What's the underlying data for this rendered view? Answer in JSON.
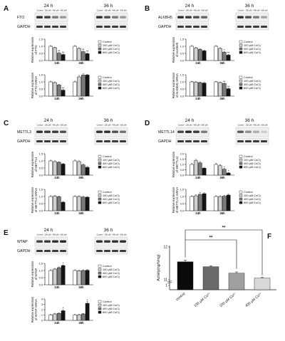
{
  "panel_labels": [
    "A",
    "B",
    "C",
    "D",
    "E",
    "F"
  ],
  "conditions": [
    "Control",
    "100 μM",
    "400 μM",
    "600 μM"
  ],
  "time_points": [
    "24 h",
    "36 h"
  ],
  "protein_band_labels": [
    "FTO",
    "ALKBH5",
    "METTL3",
    "METTL14",
    "WTAP"
  ],
  "loading_control": "GAPDH",
  "legend_entries": [
    "Control",
    "100 μM CoCl₂",
    "400 μM CoCl₂",
    "600 μM CoCl₂"
  ],
  "bar_colors": [
    "#ffffff",
    "#d0d0d0",
    "#7a7a7a",
    "#141414"
  ],
  "group_labels": [
    "24h",
    "36h"
  ],
  "chart_data": [
    {
      "id": "A-protein",
      "type": "bar",
      "panel": "A",
      "ylabel": "Relative expression of FTO",
      "ylim": [
        0,
        1.5
      ],
      "yticks": [
        "0.0",
        "0.5",
        "1.0",
        "1.5"
      ],
      "categories": [
        "24h",
        "36h"
      ],
      "series": [
        {
          "name": "Control",
          "values": [
            1.0,
            1.0
          ]
        },
        {
          "name": "100 μM CoCl₂",
          "values": [
            0.9,
            0.85
          ]
        },
        {
          "name": "400 μM CoCl₂",
          "values": [
            0.52,
            0.62
          ]
        },
        {
          "name": "600 μM CoCl₂",
          "values": [
            0.42,
            0.48
          ]
        }
      ],
      "errors": [
        [
          0.05,
          0.05
        ],
        [
          0.04,
          0.05
        ],
        [
          0.04,
          0.05
        ],
        [
          0.04,
          0.05
        ]
      ],
      "marks": [
        [
          "",
          "",
          "**",
          "**"
        ],
        [
          "",
          "",
          "**",
          "**"
        ]
      ]
    },
    {
      "id": "A-mrna",
      "type": "bar",
      "panel": "A",
      "ylabel": "Relative expression of FTO mRNA",
      "ylim": [
        0,
        1.5
      ],
      "yticks": [
        "0.0",
        "0.5",
        "1.0",
        "1.5"
      ],
      "categories": [
        "24h",
        "36h"
      ],
      "series": [
        {
          "name": "Control",
          "values": [
            1.0,
            1.0
          ]
        },
        {
          "name": "100 μM CoCl₂",
          "values": [
            0.95,
            1.35
          ]
        },
        {
          "name": "400 μM CoCl₂",
          "values": [
            0.78,
            1.48
          ]
        },
        {
          "name": "600 μM CoCl₂",
          "values": [
            0.42,
            1.48
          ]
        }
      ],
      "errors": [
        [
          0.05,
          0.05
        ],
        [
          0.05,
          0.1
        ],
        [
          0.06,
          0.08
        ],
        [
          0.05,
          0.06
        ]
      ],
      "marks": [
        [
          "",
          "",
          "",
          "**"
        ],
        [
          "",
          "",
          "",
          ""
        ]
      ]
    },
    {
      "id": "B-protein",
      "type": "bar",
      "panel": "B",
      "ylabel": "Relative expression of ALKBH5",
      "ylim": [
        0,
        1.5
      ],
      "yticks": [
        "0.0",
        "0.5",
        "1.0",
        "1.5"
      ],
      "categories": [
        "24h",
        "36h"
      ],
      "series": [
        {
          "name": "Control",
          "values": [
            1.0,
            1.0
          ]
        },
        {
          "name": "100 μM CoCl₂",
          "values": [
            0.88,
            0.85
          ]
        },
        {
          "name": "400 μM CoCl₂",
          "values": [
            0.78,
            0.58
          ]
        },
        {
          "name": "600 μM CoCl₂",
          "values": [
            0.68,
            0.38
          ]
        }
      ],
      "errors": [
        [
          0.05,
          0.05
        ],
        [
          0.05,
          0.05
        ],
        [
          0.05,
          0.05
        ],
        [
          0.05,
          0.05
        ]
      ],
      "marks": [
        [
          "",
          "",
          "",
          ""
        ],
        [
          "",
          "",
          "*",
          "**"
        ]
      ]
    },
    {
      "id": "B-mrna",
      "type": "bar",
      "panel": "B",
      "ylabel": "Relative expression of ALKBH5 mRNA",
      "ylim": [
        0,
        1.5
      ],
      "yticks": [
        "0.0",
        "0.5",
        "1.0",
        "1.5"
      ],
      "categories": [
        "24h",
        "36h"
      ],
      "series": [
        {
          "name": "Control",
          "values": [
            1.0,
            1.0
          ]
        },
        {
          "name": "100 μM CoCl₂",
          "values": [
            0.98,
            0.95
          ]
        },
        {
          "name": "400 μM CoCl₂",
          "values": [
            0.95,
            0.88
          ]
        },
        {
          "name": "600 μM CoCl₂",
          "values": [
            0.92,
            0.52
          ]
        }
      ],
      "errors": [
        [
          0.04,
          0.04
        ],
        [
          0.04,
          0.04
        ],
        [
          0.04,
          0.04
        ],
        [
          0.04,
          0.05
        ]
      ],
      "marks": [
        [
          "",
          "",
          "",
          ""
        ],
        [
          "",
          "",
          "**",
          "**"
        ]
      ]
    },
    {
      "id": "C-protein",
      "type": "bar",
      "panel": "C",
      "ylabel": "Relative expression of METTL3",
      "ylim": [
        0,
        1.5
      ],
      "yticks": [
        "0.0",
        "0.5",
        "1.0",
        "1.5"
      ],
      "categories": [
        "24h",
        "36h"
      ],
      "series": [
        {
          "name": "Control",
          "values": [
            1.0,
            1.0
          ]
        },
        {
          "name": "100 μM CoCl₂",
          "values": [
            0.95,
            0.95
          ]
        },
        {
          "name": "400 μM CoCl₂",
          "values": [
            0.9,
            0.72
          ]
        },
        {
          "name": "600 μM CoCl₂",
          "values": [
            0.78,
            0.55
          ]
        }
      ],
      "errors": [
        [
          0.05,
          0.06
        ],
        [
          0.06,
          0.06
        ],
        [
          0.05,
          0.06
        ],
        [
          0.05,
          0.06
        ]
      ],
      "marks": [
        [
          "",
          "",
          "",
          ""
        ],
        [
          "",
          "",
          "",
          ""
        ]
      ]
    },
    {
      "id": "C-mrna",
      "type": "bar",
      "panel": "C",
      "ylabel": "Relative expression of METTL3 mRNA",
      "ylim": [
        0,
        1.5
      ],
      "yticks": [
        "0.0",
        "0.5",
        "1.0",
        "1.5"
      ],
      "categories": [
        "24h",
        "36h"
      ],
      "series": [
        {
          "name": "Control",
          "values": [
            1.0,
            1.0
          ]
        },
        {
          "name": "100 μM CoCl₂",
          "values": [
            1.02,
            1.0
          ]
        },
        {
          "name": "400 μM CoCl₂",
          "values": [
            0.98,
            0.96
          ]
        },
        {
          "name": "600 μM CoCl₂",
          "values": [
            0.6,
            0.95
          ]
        }
      ],
      "errors": [
        [
          0.05,
          0.05
        ],
        [
          0.05,
          0.05
        ],
        [
          0.05,
          0.05
        ],
        [
          0.05,
          0.05
        ]
      ],
      "marks": [
        [
          "",
          "",
          "",
          ""
        ],
        [
          "",
          "",
          "",
          ""
        ]
      ]
    },
    {
      "id": "D-protein",
      "type": "bar",
      "panel": "D",
      "ylabel": "Relative expression of METTL14",
      "ylim": [
        0,
        2.0
      ],
      "yticks": [
        "0.0",
        "0.5",
        "1.0",
        "1.5",
        "2.0"
      ],
      "categories": [
        "24h",
        "36h"
      ],
      "series": [
        {
          "name": "Control",
          "values": [
            1.0,
            1.0
          ]
        },
        {
          "name": "100 μM CoCl₂",
          "values": [
            1.35,
            0.88
          ]
        },
        {
          "name": "400 μM CoCl₂",
          "values": [
            1.15,
            0.55
          ]
        },
        {
          "name": "600 μM CoCl₂",
          "values": [
            0.65,
            0.2
          ]
        }
      ],
      "errors": [
        [
          0.1,
          0.1
        ],
        [
          0.12,
          0.1
        ],
        [
          0.12,
          0.08
        ],
        [
          0.08,
          0.05
        ]
      ],
      "marks": [
        [
          "",
          "",
          "",
          ""
        ],
        [
          "",
          "",
          "*",
          "*"
        ]
      ]
    },
    {
      "id": "D-mrna",
      "type": "bar",
      "panel": "D",
      "ylabel": "Relative expression of METTL14 mRNA",
      "ylim": [
        0,
        1.5
      ],
      "yticks": [
        "0.0",
        "0.5",
        "1.0",
        "1.5"
      ],
      "categories": [
        "24h",
        "36h"
      ],
      "series": [
        {
          "name": "Control",
          "values": [
            1.0,
            1.0
          ]
        },
        {
          "name": "100 μM CoCl₂",
          "values": [
            1.05,
            1.0
          ]
        },
        {
          "name": "400 μM CoCl₂",
          "values": [
            1.15,
            1.02
          ]
        },
        {
          "name": "600 μM CoCl₂",
          "values": [
            1.2,
            1.1
          ]
        }
      ],
      "errors": [
        [
          0.05,
          0.05
        ],
        [
          0.06,
          0.05
        ],
        [
          0.12,
          0.05
        ],
        [
          0.06,
          0.06
        ]
      ],
      "marks": [
        [
          "",
          "",
          "",
          ""
        ],
        [
          "",
          "",
          "",
          ""
        ]
      ]
    },
    {
      "id": "E-protein",
      "type": "bar",
      "panel": "E",
      "ylabel": "Relative expression of WTAP",
      "ylim": [
        0,
        1.5
      ],
      "yticks": [
        "0.0",
        "0.5",
        "1.0",
        "1.5"
      ],
      "categories": [
        "24h",
        "36h"
      ],
      "series": [
        {
          "name": "Control",
          "values": [
            1.0,
            1.0
          ]
        },
        {
          "name": "100 μM CoCl₂",
          "values": [
            1.1,
            0.98
          ]
        },
        {
          "name": "400 μM CoCl₂",
          "values": [
            1.2,
            1.0
          ]
        },
        {
          "name": "600 μM CoCl₂",
          "values": [
            1.35,
            1.02
          ]
        }
      ],
      "errors": [
        [
          0.05,
          0.05
        ],
        [
          0.05,
          0.05
        ],
        [
          0.05,
          0.05
        ],
        [
          0.05,
          0.05
        ]
      ],
      "marks": [
        [
          "",
          "",
          "",
          "*"
        ],
        [
          "",
          "",
          "",
          ""
        ]
      ]
    },
    {
      "id": "E-mrna",
      "type": "bar",
      "panel": "E",
      "ylabel": "Relative expression of WTAP mRNA",
      "ylim": [
        0,
        4
      ],
      "yticks": [
        "0",
        "1",
        "2",
        "3",
        "4"
      ],
      "categories": [
        "24h",
        "36h"
      ],
      "series": [
        {
          "name": "Control",
          "values": [
            1.0,
            1.0
          ]
        },
        {
          "name": "100 μM CoCl₂",
          "values": [
            1.2,
            1.05
          ]
        },
        {
          "name": "400 μM CoCl₂",
          "values": [
            1.3,
            1.2
          ]
        },
        {
          "name": "600 μM CoCl₂",
          "values": [
            1.8,
            3.2
          ]
        }
      ],
      "errors": [
        [
          0.1,
          0.1
        ],
        [
          0.12,
          0.1
        ],
        [
          0.12,
          0.1
        ],
        [
          0.2,
          0.3
        ]
      ],
      "marks": [
        [
          "",
          "",
          "",
          "*"
        ],
        [
          "",
          "",
          "",
          "*"
        ]
      ]
    },
    {
      "id": "F-activity",
      "type": "bar",
      "panel": "F",
      "ylabel": "Activity(ng/h/mg)",
      "yticks": [
        "1",
        "11",
        "12"
      ],
      "categories": [
        "control",
        "100 μM Co²⁺",
        "200 μM Co²⁺",
        "400 μM Co²⁺"
      ],
      "values": [
        11.55,
        11.4,
        11.2,
        11.05
      ],
      "errors": [
        0.05,
        0.03,
        0.04,
        0.02
      ],
      "colors": [
        "#0a0a0a",
        "#6a6a6a",
        "#a0a0a0",
        "#d8d8d8"
      ],
      "significance": "**"
    }
  ]
}
